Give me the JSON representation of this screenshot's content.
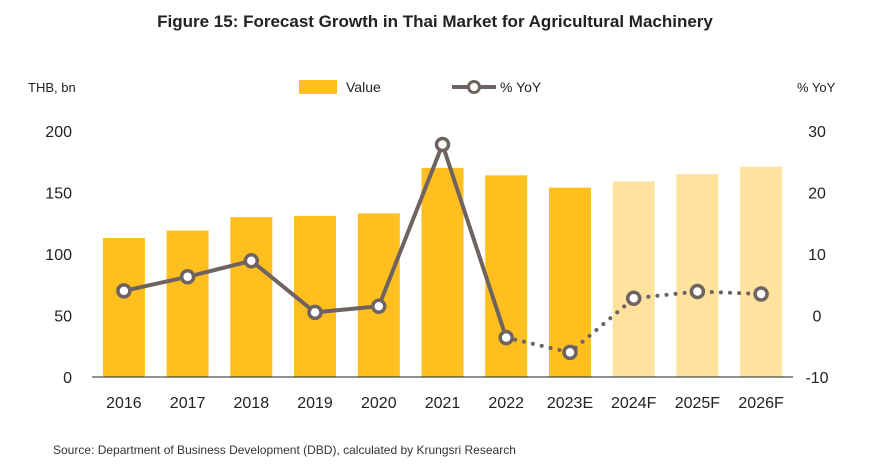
{
  "title": "Figure 15: Forecast Growth in Thai Market for Agricultural Machinery",
  "source": "Source: Department of Business Development (DBD), calculated by Krungsri Research",
  "colors": {
    "bar_actual": "#FFBF1F",
    "bar_forecast": "#FFE29E",
    "line": "#6E6360",
    "marker_fill": "#ffffff",
    "axis": "#222222"
  },
  "chart_data": {
    "type": "bar",
    "categories": [
      "2016",
      "2017",
      "2018",
      "2019",
      "2020",
      "2021",
      "2022",
      "2023E",
      "2024F",
      "2025F",
      "2026F"
    ],
    "left_axis_label": "THB, bn",
    "right_axis_label": "% YoY",
    "ylim_left": [
      0,
      200
    ],
    "yticks_left": [
      0,
      50,
      100,
      150,
      200
    ],
    "ylim_right": [
      -10,
      30
    ],
    "yticks_right": [
      -10,
      0,
      10,
      20,
      30
    ],
    "grid": false,
    "legend_position": "top",
    "series": [
      {
        "name": "Value",
        "type": "bar",
        "axis": "left",
        "values": [
          113,
          119,
          130,
          131,
          133,
          170,
          164,
          154,
          159,
          165,
          171
        ],
        "forecast_from_index": 8
      },
      {
        "name": "% YoY",
        "type": "line",
        "axis": "right",
        "values": [
          4.0,
          6.3,
          8.9,
          0.5,
          1.5,
          27.8,
          -3.6,
          -6.0,
          2.8,
          3.9,
          3.5
        ],
        "dashed_from_index": 6
      }
    ]
  }
}
